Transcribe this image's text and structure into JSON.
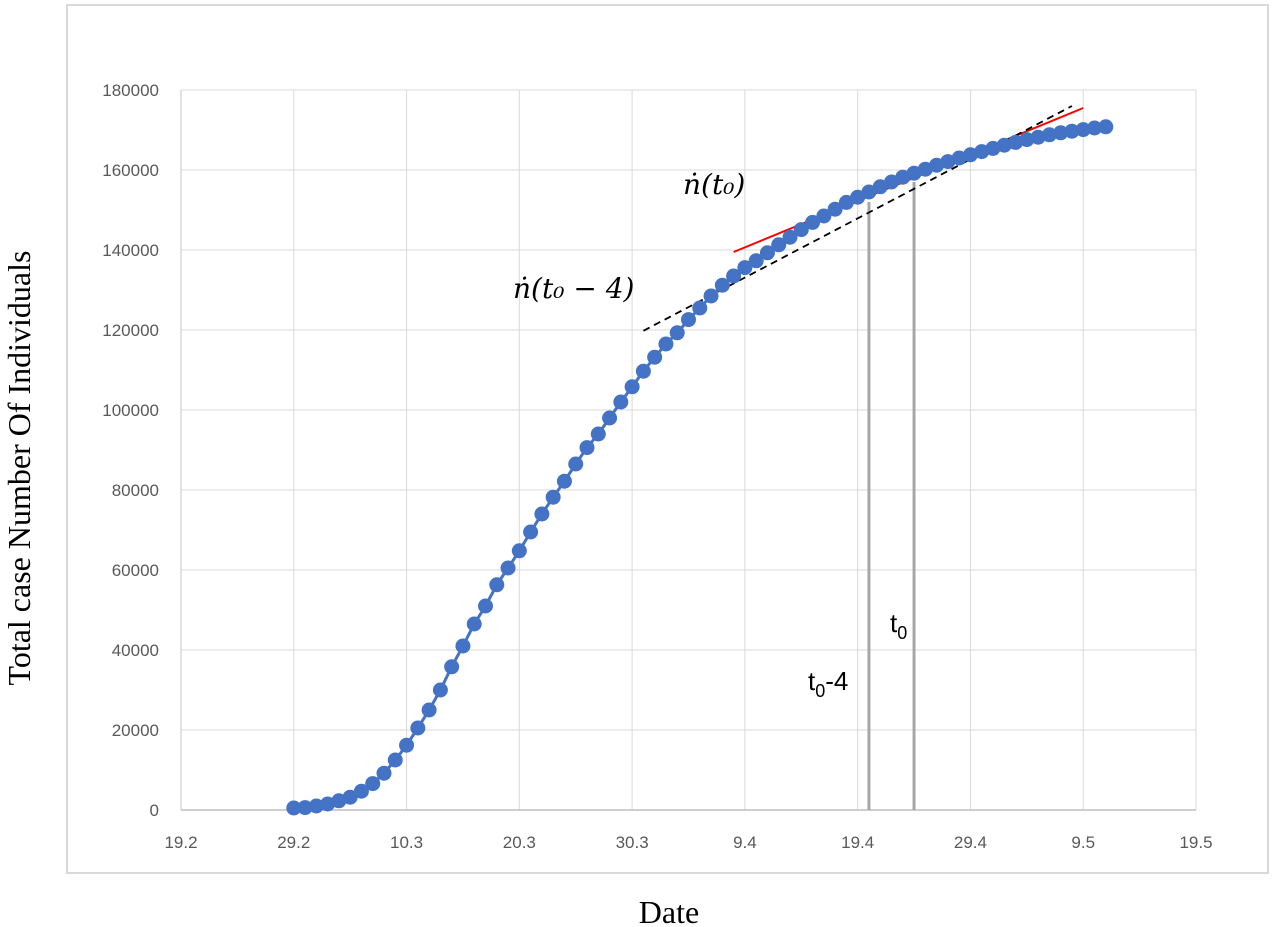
{
  "chart_data": {
    "type": "line",
    "title": "",
    "xlabel": "Date",
    "ylabel": "Total case Number Of Individuals",
    "x_ticks": [
      "19.2",
      "29.2",
      "10.3",
      "20.3",
      "30.3",
      "9.4",
      "19.4",
      "29.4",
      "9.5",
      "19.5"
    ],
    "y_ticks": [
      "0",
      "20000",
      "40000",
      "60000",
      "80000",
      "100000",
      "120000",
      "140000",
      "160000",
      "180000"
    ],
    "xlim_days_from_19_2": [
      0,
      90
    ],
    "ylim": [
      0,
      180000
    ],
    "grid": true,
    "series": [
      {
        "color": "#4472c4",
        "x_dates": [
          "29.2",
          "1.3",
          "2.3",
          "3.3",
          "4.3",
          "5.3",
          "6.3",
          "7.3",
          "8.3",
          "9.3",
          "10.3",
          "11.3",
          "12.3",
          "13.3",
          "14.3",
          "15.3",
          "16.3",
          "17.3",
          "18.3",
          "19.3",
          "20.3",
          "21.3",
          "22.3",
          "23.3",
          "24.3",
          "25.3",
          "26.3",
          "27.3",
          "28.3",
          "29.3",
          "30.3",
          "31.3",
          "1.4",
          "2.4",
          "3.4",
          "4.4",
          "5.4",
          "6.4",
          "7.4",
          "8.4",
          "9.4",
          "10.4",
          "11.4",
          "12.4",
          "13.4",
          "14.4",
          "15.4",
          "16.4",
          "17.4",
          "18.4",
          "19.4",
          "20.4",
          "21.4",
          "22.4",
          "23.4",
          "24.4",
          "25.4",
          "26.4",
          "27.4",
          "28.4",
          "29.4",
          "30.4",
          "1.5",
          "2.5",
          "3.5",
          "4.5",
          "5.5",
          "6.5",
          "7.5",
          "8.5",
          "9.5",
          "10.5",
          "11.5"
        ],
        "values": [
          500,
          600,
          1000,
          1500,
          2300,
          3200,
          4700,
          6600,
          9200,
          12500,
          16200,
          20500,
          25000,
          30000,
          35800,
          41000,
          46500,
          51000,
          56300,
          60500,
          64800,
          69500,
          74000,
          78200,
          82200,
          86500,
          90600,
          94000,
          98000,
          102000,
          105800,
          109700,
          113200,
          116500,
          119300,
          122600,
          125500,
          128500,
          131200,
          133500,
          135600,
          137300,
          139300,
          141300,
          143200,
          145100,
          146900,
          148500,
          150200,
          151900,
          153200,
          154500,
          155800,
          157000,
          158200,
          159200,
          160200,
          161200,
          162100,
          163000,
          163800,
          164600,
          165400,
          166200,
          166900,
          167600,
          168200,
          168800,
          169300,
          169700,
          170100,
          170500,
          170800
        ]
      }
    ],
    "annotations": {
      "tangent_red": {
        "color": "#ff0000",
        "from": {
          "date": "8.4",
          "value": 139500
        },
        "to": {
          "date": "9.5",
          "value": 175500
        }
      },
      "tangent_dashed": {
        "color": "#000000",
        "from": {
          "date": "31.3",
          "value": 119800
        },
        "to": {
          "date": "8.5",
          "value": 176000
        }
      },
      "vline_t0_minus_4": {
        "color": "#a6a6a6",
        "date": "20.4",
        "value_top": 152000
      },
      "vline_t0": {
        "color": "#a6a6a6",
        "date": "24.4",
        "value_top": 157000
      },
      "label_ndot_t0": "ṅ(t₀)",
      "label_ndot_t0_minus_4": "ṅ(t₀ − 4)",
      "label_t0_base": "t",
      "label_t0_sub": "0",
      "label_t0m4_base": "t",
      "label_t0m4_sub": "0",
      "label_t0m4_suffix": "-4"
    }
  }
}
